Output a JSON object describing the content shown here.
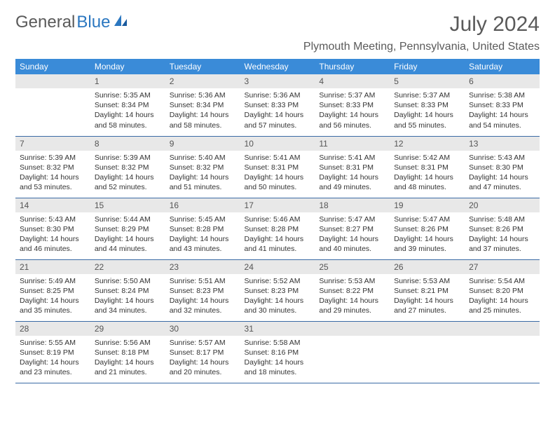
{
  "logo": {
    "text1": "General",
    "text2": "Blue"
  },
  "title": "July 2024",
  "location": "Plymouth Meeting, Pennsylvania, United States",
  "columns": [
    "Sunday",
    "Monday",
    "Tuesday",
    "Wednesday",
    "Thursday",
    "Friday",
    "Saturday"
  ],
  "colors": {
    "header_bg": "#3a8bd8",
    "header_text": "#ffffff",
    "daynum_bg": "#e8e8e8",
    "divider": "#3a6ba5",
    "logo_gray": "#5a5a5a",
    "logo_blue": "#2b77c0"
  },
  "weeks": [
    [
      {
        "n": "",
        "lines": []
      },
      {
        "n": "1",
        "lines": [
          "Sunrise: 5:35 AM",
          "Sunset: 8:34 PM",
          "Daylight: 14 hours and 58 minutes."
        ]
      },
      {
        "n": "2",
        "lines": [
          "Sunrise: 5:36 AM",
          "Sunset: 8:34 PM",
          "Daylight: 14 hours and 58 minutes."
        ]
      },
      {
        "n": "3",
        "lines": [
          "Sunrise: 5:36 AM",
          "Sunset: 8:33 PM",
          "Daylight: 14 hours and 57 minutes."
        ]
      },
      {
        "n": "4",
        "lines": [
          "Sunrise: 5:37 AM",
          "Sunset: 8:33 PM",
          "Daylight: 14 hours and 56 minutes."
        ]
      },
      {
        "n": "5",
        "lines": [
          "Sunrise: 5:37 AM",
          "Sunset: 8:33 PM",
          "Daylight: 14 hours and 55 minutes."
        ]
      },
      {
        "n": "6",
        "lines": [
          "Sunrise: 5:38 AM",
          "Sunset: 8:33 PM",
          "Daylight: 14 hours and 54 minutes."
        ]
      }
    ],
    [
      {
        "n": "7",
        "lines": [
          "Sunrise: 5:39 AM",
          "Sunset: 8:32 PM",
          "Daylight: 14 hours and 53 minutes."
        ]
      },
      {
        "n": "8",
        "lines": [
          "Sunrise: 5:39 AM",
          "Sunset: 8:32 PM",
          "Daylight: 14 hours and 52 minutes."
        ]
      },
      {
        "n": "9",
        "lines": [
          "Sunrise: 5:40 AM",
          "Sunset: 8:32 PM",
          "Daylight: 14 hours and 51 minutes."
        ]
      },
      {
        "n": "10",
        "lines": [
          "Sunrise: 5:41 AM",
          "Sunset: 8:31 PM",
          "Daylight: 14 hours and 50 minutes."
        ]
      },
      {
        "n": "11",
        "lines": [
          "Sunrise: 5:41 AM",
          "Sunset: 8:31 PM",
          "Daylight: 14 hours and 49 minutes."
        ]
      },
      {
        "n": "12",
        "lines": [
          "Sunrise: 5:42 AM",
          "Sunset: 8:31 PM",
          "Daylight: 14 hours and 48 minutes."
        ]
      },
      {
        "n": "13",
        "lines": [
          "Sunrise: 5:43 AM",
          "Sunset: 8:30 PM",
          "Daylight: 14 hours and 47 minutes."
        ]
      }
    ],
    [
      {
        "n": "14",
        "lines": [
          "Sunrise: 5:43 AM",
          "Sunset: 8:30 PM",
          "Daylight: 14 hours and 46 minutes."
        ]
      },
      {
        "n": "15",
        "lines": [
          "Sunrise: 5:44 AM",
          "Sunset: 8:29 PM",
          "Daylight: 14 hours and 44 minutes."
        ]
      },
      {
        "n": "16",
        "lines": [
          "Sunrise: 5:45 AM",
          "Sunset: 8:28 PM",
          "Daylight: 14 hours and 43 minutes."
        ]
      },
      {
        "n": "17",
        "lines": [
          "Sunrise: 5:46 AM",
          "Sunset: 8:28 PM",
          "Daylight: 14 hours and 41 minutes."
        ]
      },
      {
        "n": "18",
        "lines": [
          "Sunrise: 5:47 AM",
          "Sunset: 8:27 PM",
          "Daylight: 14 hours and 40 minutes."
        ]
      },
      {
        "n": "19",
        "lines": [
          "Sunrise: 5:47 AM",
          "Sunset: 8:26 PM",
          "Daylight: 14 hours and 39 minutes."
        ]
      },
      {
        "n": "20",
        "lines": [
          "Sunrise: 5:48 AM",
          "Sunset: 8:26 PM",
          "Daylight: 14 hours and 37 minutes."
        ]
      }
    ],
    [
      {
        "n": "21",
        "lines": [
          "Sunrise: 5:49 AM",
          "Sunset: 8:25 PM",
          "Daylight: 14 hours and 35 minutes."
        ]
      },
      {
        "n": "22",
        "lines": [
          "Sunrise: 5:50 AM",
          "Sunset: 8:24 PM",
          "Daylight: 14 hours and 34 minutes."
        ]
      },
      {
        "n": "23",
        "lines": [
          "Sunrise: 5:51 AM",
          "Sunset: 8:23 PM",
          "Daylight: 14 hours and 32 minutes."
        ]
      },
      {
        "n": "24",
        "lines": [
          "Sunrise: 5:52 AM",
          "Sunset: 8:23 PM",
          "Daylight: 14 hours and 30 minutes."
        ]
      },
      {
        "n": "25",
        "lines": [
          "Sunrise: 5:53 AM",
          "Sunset: 8:22 PM",
          "Daylight: 14 hours and 29 minutes."
        ]
      },
      {
        "n": "26",
        "lines": [
          "Sunrise: 5:53 AM",
          "Sunset: 8:21 PM",
          "Daylight: 14 hours and 27 minutes."
        ]
      },
      {
        "n": "27",
        "lines": [
          "Sunrise: 5:54 AM",
          "Sunset: 8:20 PM",
          "Daylight: 14 hours and 25 minutes."
        ]
      }
    ],
    [
      {
        "n": "28",
        "lines": [
          "Sunrise: 5:55 AM",
          "Sunset: 8:19 PM",
          "Daylight: 14 hours and 23 minutes."
        ]
      },
      {
        "n": "29",
        "lines": [
          "Sunrise: 5:56 AM",
          "Sunset: 8:18 PM",
          "Daylight: 14 hours and 21 minutes."
        ]
      },
      {
        "n": "30",
        "lines": [
          "Sunrise: 5:57 AM",
          "Sunset: 8:17 PM",
          "Daylight: 14 hours and 20 minutes."
        ]
      },
      {
        "n": "31",
        "lines": [
          "Sunrise: 5:58 AM",
          "Sunset: 8:16 PM",
          "Daylight: 14 hours and 18 minutes."
        ]
      },
      {
        "n": "",
        "lines": []
      },
      {
        "n": "",
        "lines": []
      },
      {
        "n": "",
        "lines": []
      }
    ]
  ]
}
